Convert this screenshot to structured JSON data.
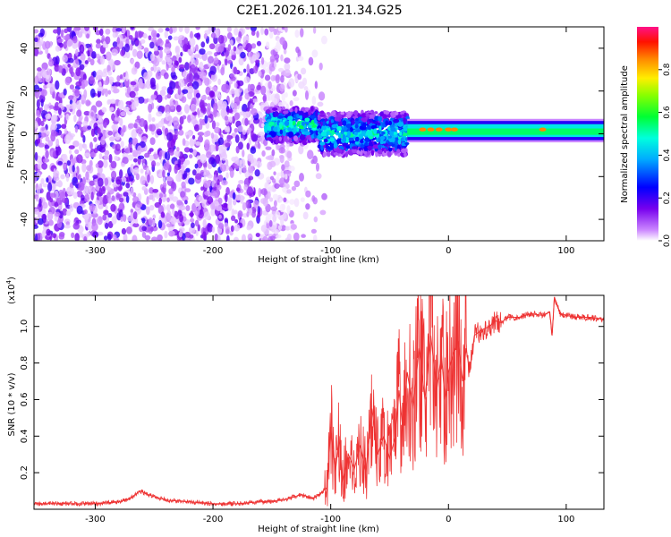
{
  "title": "C2E1.2026.101.21.34.G25",
  "chart_data": [
    {
      "type": "heatmap",
      "name": "spectrogram",
      "xlabel": "Height of straight line (km)",
      "ylabel": "Frequency (Hz)",
      "xlim": [
        -352,
        132
      ],
      "ylim": [
        -50,
        50
      ],
      "xticks": [
        -300,
        -200,
        -100,
        0,
        100
      ],
      "yticks": [
        -40,
        -20,
        0,
        20,
        40
      ],
      "colorbar": {
        "label": "Normalized spectral amplitude",
        "range": [
          0,
          1
        ],
        "ticks": [
          0.0,
          0.2,
          0.4,
          0.6,
          0.8
        ]
      },
      "regions": [
        {
          "description": "scattered noise",
          "x_range": [
            -352,
            -140
          ],
          "freq_range": [
            -50,
            50
          ],
          "amplitude": 0.1
        },
        {
          "description": "broad signal band",
          "x_range": [
            -155,
            -110
          ],
          "freq_range": [
            -4,
            12
          ],
          "amplitude": 0.45
        },
        {
          "description": "signal band",
          "x_range": [
            -110,
            -35
          ],
          "freq_range": [
            -10,
            10
          ],
          "amplitude": 0.4
        },
        {
          "description": "narrow carrier",
          "x_range": [
            -35,
            132
          ],
          "freq_range": [
            -3,
            6
          ],
          "amplitude": 0.55
        },
        {
          "description": "peaks",
          "x": [
            -22,
            -15,
            -8,
            0,
            5,
            80
          ],
          "freq": [
            2,
            2,
            2,
            2,
            2,
            2
          ],
          "amplitude": 0.85
        }
      ]
    },
    {
      "type": "line",
      "name": "snr",
      "xlabel": "Height of straight line (km)",
      "ylabel": "SNR (10 * v/v)",
      "scale_label": "(x10",
      "scale_exp": "4",
      "scale_close": ")",
      "xlim": [
        -352,
        132
      ],
      "ylim": [
        0,
        1.17
      ],
      "xticks": [
        -300,
        -200,
        -100,
        0,
        100
      ],
      "yticks": [
        0.2,
        0.4,
        0.6,
        0.8,
        1.0
      ],
      "series": [
        {
          "name": "SNR",
          "color": "#ee3333",
          "x": [
            -352,
            -340,
            -320,
            -300,
            -280,
            -270,
            -262,
            -255,
            -240,
            -220,
            -200,
            -180,
            -160,
            -140,
            -125,
            -115,
            -110,
            -103,
            -100,
            -96,
            -93,
            -90,
            -85,
            -80,
            -75,
            -70,
            -65,
            -60,
            -55,
            -50,
            -45,
            -42,
            -39,
            -35,
            -30,
            -25,
            -20,
            -15,
            -10,
            -6,
            -3,
            0,
            4,
            8,
            12,
            15,
            18,
            22,
            28,
            35,
            40,
            45,
            50,
            60,
            70,
            80,
            86,
            88,
            90,
            95,
            100,
            110,
            120,
            132
          ],
          "y": [
            0.03,
            0.03,
            0.03,
            0.03,
            0.04,
            0.06,
            0.1,
            0.08,
            0.05,
            0.04,
            0.03,
            0.03,
            0.04,
            0.05,
            0.08,
            0.06,
            0.08,
            0.12,
            0.45,
            0.2,
            0.4,
            0.15,
            0.3,
            0.22,
            0.35,
            0.2,
            0.55,
            0.3,
            0.4,
            0.28,
            0.4,
            0.65,
            0.45,
            0.75,
            0.55,
            0.88,
            0.6,
            0.95,
            0.65,
            0.85,
            0.6,
            0.75,
            0.85,
            0.92,
            0.7,
            0.88,
            0.75,
            0.95,
            0.98,
            1.0,
            1.03,
            1.02,
            1.05,
            1.05,
            1.07,
            1.06,
            1.08,
            0.95,
            1.16,
            1.07,
            1.06,
            1.05,
            1.05,
            1.04
          ]
        }
      ]
    }
  ]
}
